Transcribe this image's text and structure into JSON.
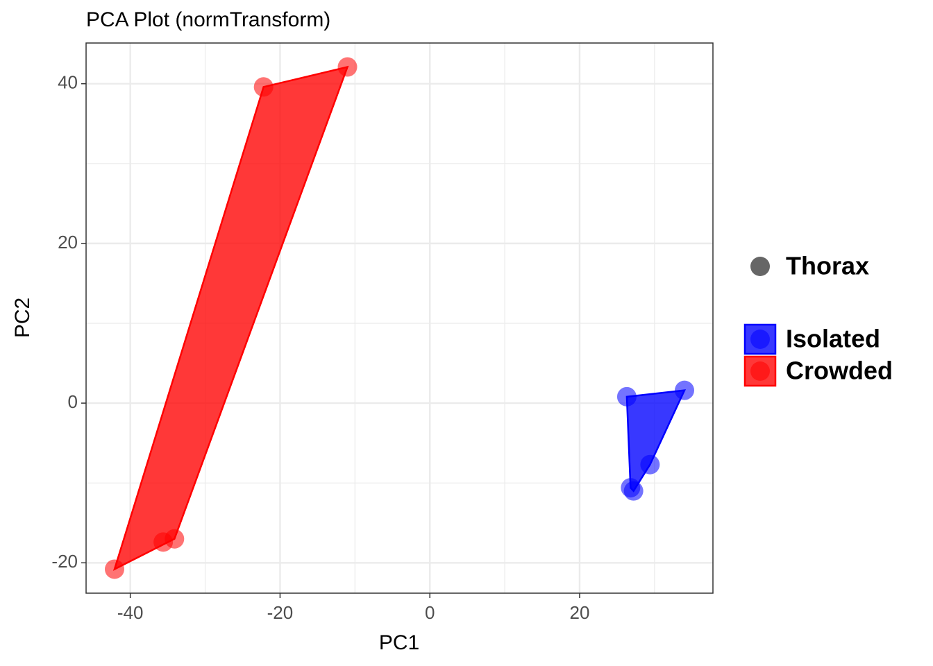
{
  "chart_data": {
    "type": "scatter",
    "title": "PCA Plot (normTransform)",
    "x_label": "PC1",
    "y_label": "PC2",
    "shape_label": "Thorax",
    "shape_color": "#666666",
    "xlim": [
      -45.9,
      37.8
    ],
    "ylim": [
      -23.8,
      45.1
    ],
    "xticks": [
      -40,
      -20,
      0,
      20
    ],
    "yticks": [
      -20,
      0,
      20,
      40
    ],
    "xminorticks": [
      -30,
      -10,
      10,
      30
    ],
    "yminorticks": [
      -10,
      10,
      30
    ],
    "grid": true,
    "series": [
      {
        "name": "Isolated",
        "color": "#0000ff",
        "x": [
          26.3,
          34.0,
          29.4,
          26.8,
          27.2
        ],
        "values": [
          0.8,
          1.6,
          -7.7,
          -10.6,
          -11.0
        ]
      },
      {
        "name": "Crowded",
        "color": "#ff0000",
        "x": [
          -42.1,
          -35.6,
          -34.1,
          -22.2,
          -11.0
        ],
        "values": [
          -20.8,
          -17.4,
          -17.0,
          39.6,
          42.1
        ]
      }
    ]
  }
}
